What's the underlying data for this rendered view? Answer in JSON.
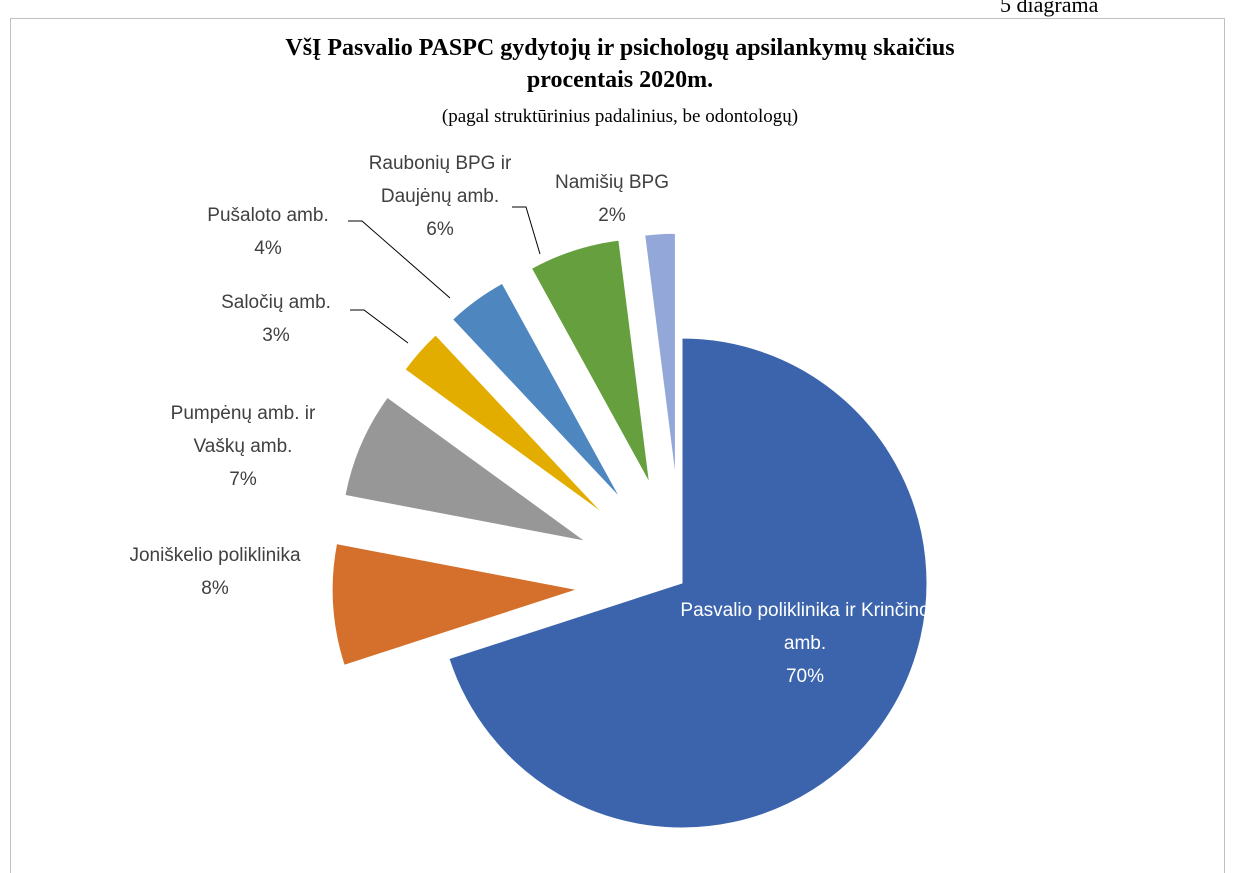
{
  "chart_data": {
    "type": "pie",
    "caption": "5 diagrama",
    "title": "VšĮ Pasvalio PASPC gydytojų ir psichologų apsilankymų skaičius procentais 2020m.",
    "subtitle": "(pagal struktūrinius padalinius, be odontologų)",
    "categories": [
      "Pasvalio poliklinika ir Krinčino amb.",
      "Joniškelio poliklinika",
      "Pumpėnų amb. ir Vaškų amb.",
      "Saločių amb.",
      "Pušaloto amb.",
      "Raubonių BPG ir Daujėnų amb.",
      "Namišių BPG"
    ],
    "values": [
      70,
      8,
      7,
      3,
      4,
      6,
      2
    ],
    "value_labels": [
      "70%",
      "8%",
      "7%",
      "3%",
      "4%",
      "6%",
      "2%"
    ],
    "colors": [
      "#3c64ad",
      "#d4702b",
      "#979797",
      "#e3ad00",
      "#4e86c0",
      "#66a03e",
      "#93a8d8"
    ]
  }
}
